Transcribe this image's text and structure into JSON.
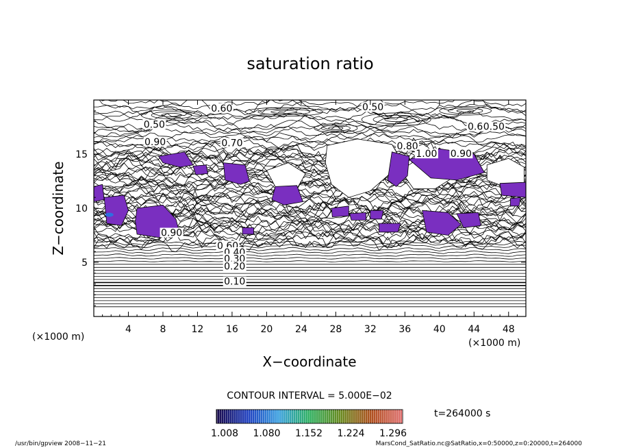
{
  "chart_data": {
    "type": "contour",
    "title": "saturation ratio",
    "xlabel": "X−coordinate",
    "ylabel": "Z−coordinate",
    "x_unit": "(×1000 m)",
    "y_unit": "(×1000 m)",
    "xlim": [
      0,
      50
    ],
    "ylim": [
      0,
      20
    ],
    "x_ticks": [
      4,
      8,
      12,
      16,
      20,
      24,
      28,
      32,
      36,
      40,
      44,
      48
    ],
    "x_tick_labels": [
      "4",
      "8",
      "12",
      "16",
      "20",
      "24",
      "28",
      "32",
      "36",
      "40",
      "44",
      "48"
    ],
    "y_ticks": [
      5,
      10,
      15
    ],
    "y_tick_labels": [
      "5",
      "10",
      "15"
    ],
    "contour_interval_text": "CONTOUR INTERVAL = 5.000E−02",
    "time_text": "t=264000 s",
    "colorbar": {
      "tick_labels": [
        "1.008",
        "1.080",
        "1.152",
        "1.224",
        "1.296"
      ],
      "colors": [
        "#1a0a4a",
        "#1f3fbf",
        "#3aa0e0",
        "#2fb060",
        "#6a8a20",
        "#b05020",
        "#e07070"
      ]
    },
    "fill_color": "#7a2fc0",
    "contour_labels": [
      {
        "text": "0.60",
        "x": 14.8,
        "y": 19.0
      },
      {
        "text": "0.50",
        "x": 32.3,
        "y": 19.1
      },
      {
        "text": "0.50",
        "x": 7.0,
        "y": 17.5
      },
      {
        "text": "0.60",
        "x": 44.5,
        "y": 17.3
      },
      {
        "text": "0.50",
        "x": 46.3,
        "y": 17.3
      },
      {
        "text": "0.90",
        "x": 7.1,
        "y": 15.9
      },
      {
        "text": "0.70",
        "x": 16.0,
        "y": 15.8
      },
      {
        "text": "0.80",
        "x": 36.3,
        "y": 15.5
      },
      {
        "text": "1.00",
        "x": 38.5,
        "y": 14.8
      },
      {
        "text": "0.90",
        "x": 42.5,
        "y": 14.8
      },
      {
        "text": "0.90",
        "x": 9.0,
        "y": 7.5
      },
      {
        "text": "0.60",
        "x": 15.5,
        "y": 6.3
      },
      {
        "text": "0.40",
        "x": 16.3,
        "y": 5.7
      },
      {
        "text": "0.30",
        "x": 16.3,
        "y": 5.1
      },
      {
        "text": "0.20",
        "x": 16.3,
        "y": 4.4
      },
      {
        "text": "0.10",
        "x": 16.3,
        "y": 3.0
      }
    ],
    "footer_left": "/usr/bin/gpview   2008−11−21",
    "footer_right": "MarsCond_SatRatio.nc@SatRatio,x=0:50000,z=0:20000,t=264000"
  }
}
